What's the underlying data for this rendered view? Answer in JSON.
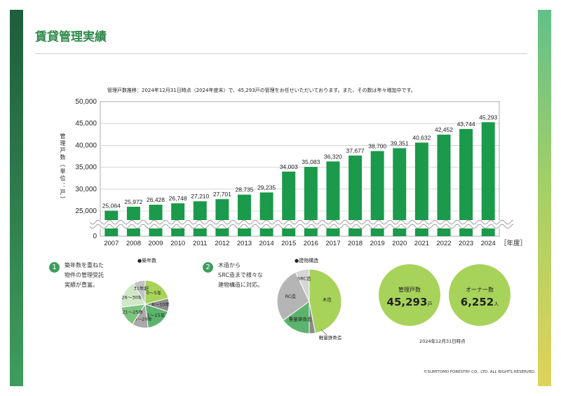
{
  "page": {
    "title": "賃貸管理実績",
    "copyright": "©SUMITOMO FORESTRY CO., LTD. ALL RIGHTS RESERVED."
  },
  "colors": {
    "brand_dark": "#1e5e3b",
    "bar": "#1a9a4a",
    "title": "#2f8a4b",
    "kpi_circle": "#a7d35a"
  },
  "chart_data": [
    {
      "type": "bar",
      "title": "管理戸数推移：2024年12月31日時点（2024年度末）で、45,293戸の管理をお任せいただいております。また、その数は年々増加中です。",
      "xlabel": "［年度］",
      "ylabel": "管理戸数（単位：戸）",
      "ylim": [
        0,
        50000
      ],
      "y_axis_break": [
        0,
        20000
      ],
      "y_ticks": [
        "0",
        "25,000",
        "30,000",
        "35,000",
        "40,000",
        "45,000",
        "50,000"
      ],
      "categories": [
        "2007",
        "2008",
        "2009",
        "2010",
        "2011",
        "2012",
        "2013",
        "2014",
        "2015",
        "2016",
        "2017",
        "2018",
        "2019",
        "2020",
        "2021",
        "2022",
        "2023",
        "2024"
      ],
      "values": [
        25064,
        25972,
        26428,
        26748,
        27210,
        27701,
        28735,
        29235,
        34003,
        35083,
        36320,
        37677,
        38700,
        39351,
        40632,
        42452,
        43744,
        45293
      ],
      "value_labels": [
        "25,064",
        "25,972",
        "26,428",
        "26,748",
        "27,210",
        "27,701",
        "28,735",
        "29,235",
        "34,003",
        "35,083",
        "36,320",
        "37,677",
        "38,700",
        "39,351",
        "40,632",
        "42,452",
        "43,744",
        "45,293"
      ]
    },
    {
      "type": "pie",
      "title": "●築年数",
      "categories": [
        "0〜5年",
        "6〜10年",
        "11〜15年",
        "16〜20年",
        "21〜25年",
        "26〜30年",
        "31年超"
      ],
      "values": [
        21,
        9,
        18,
        11,
        14,
        19,
        8
      ],
      "colors": [
        "#a7d35a",
        "#8e8e8e",
        "#5cb36d",
        "#a9a9a9",
        "#7cc47f",
        "#cfe8c7",
        "#c4c4c4"
      ]
    },
    {
      "type": "pie",
      "title": "●建物構造",
      "categories": [
        "木造",
        "軽量鉄骨造",
        "重量鉄骨造",
        "RC造",
        "SRC造"
      ],
      "values": [
        47,
        3,
        15,
        28,
        7
      ],
      "colors": [
        "#a7d35a",
        "#8a8a8a",
        "#5cb36d",
        "#b5b5b5",
        "#d6d6d6"
      ]
    }
  ],
  "sections": [
    {
      "number": "1",
      "lines": [
        "築年数を重ねた",
        "物件の管理受託",
        "実績が豊富。"
      ]
    },
    {
      "number": "2",
      "lines": [
        "木造から",
        "SRC造まで様々な",
        "建物構造に対応。"
      ]
    }
  ],
  "kpis": [
    {
      "label": "管理戸数",
      "value": "45,293",
      "unit": "戸"
    },
    {
      "label": "オーナー数",
      "value": "6,252",
      "unit": "人"
    }
  ],
  "kpi_date": "2024年12月31日時点"
}
